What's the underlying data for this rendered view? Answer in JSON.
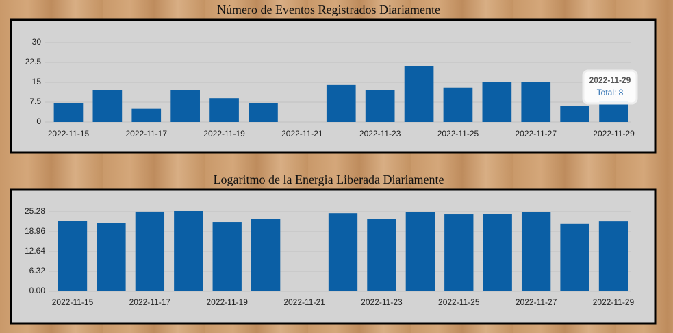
{
  "chart_data": [
    {
      "type": "bar",
      "title": "Número de Eventos Registrados Diariamente",
      "categories": [
        "2022-11-15",
        null,
        "2022-11-17",
        null,
        "2022-11-19",
        null,
        "2022-11-21",
        null,
        "2022-11-23",
        null,
        "2022-11-25",
        null,
        "2022-11-27",
        null,
        "2022-11-29"
      ],
      "values": [
        7,
        12,
        5,
        12,
        9,
        7,
        null,
        14,
        12,
        21,
        13,
        15,
        15,
        6,
        8
      ],
      "color": "#0b5fa5",
      "ylim": [
        0,
        30
      ],
      "yticks": [
        0,
        7.5,
        15,
        22.5,
        30
      ],
      "grid": true,
      "tooltip": {
        "title": "2022-11-29",
        "text": "Total: 8"
      }
    },
    {
      "type": "bar",
      "title": "Logaritmo de la Energia Liberada Diariamente",
      "categories": [
        "2022-11-15",
        null,
        "2022-11-17",
        null,
        "2022-11-19",
        null,
        "2022-11-21",
        null,
        "2022-11-23",
        null,
        "2022-11-25",
        null,
        "2022-11-27",
        null,
        "2022-11-29"
      ],
      "values": [
        22.4,
        21.6,
        25.3,
        25.5,
        22.0,
        23.1,
        null,
        24.8,
        23.1,
        25.1,
        24.4,
        24.6,
        25.1,
        21.4,
        22.2
      ],
      "color": "#0b5fa5",
      "ylim": [
        0,
        25.28
      ],
      "yticks": [
        {
          "value": 0,
          "label": "0.00"
        },
        6.32,
        12.64,
        18.96,
        25.28
      ],
      "grid": true
    }
  ]
}
